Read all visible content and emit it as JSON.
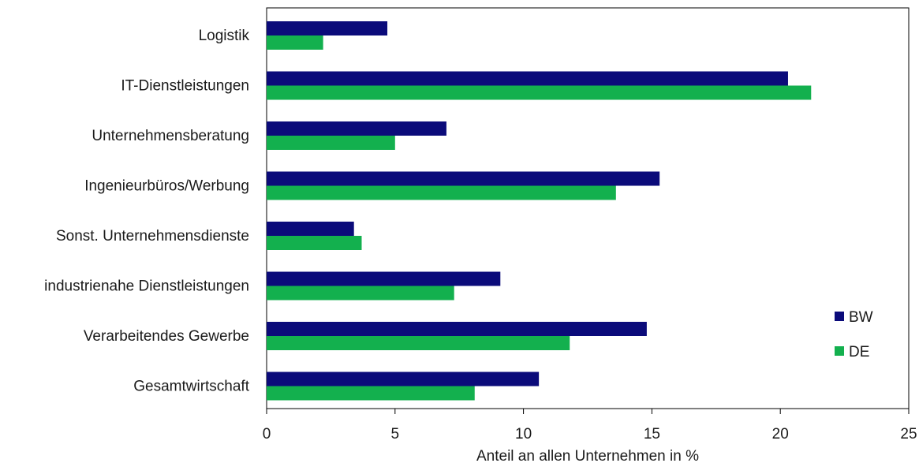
{
  "chart_data": {
    "type": "bar",
    "orientation": "horizontal",
    "categories": [
      "Logistik",
      "IT-Dienstleistungen",
      "Unternehmensberatung",
      "Ingenieurbüros/Werbung",
      "Sonst. Unternehmensdienste",
      "industrienahe Dienstleistungen",
      "Verarbeitendes Gewerbe",
      "Gesamtwirtschaft"
    ],
    "series": [
      {
        "name": "BW",
        "color": "#0b0b7a",
        "values": [
          4.7,
          20.3,
          7.0,
          15.3,
          3.4,
          9.1,
          14.8,
          10.6
        ]
      },
      {
        "name": "DE",
        "color": "#13b04e",
        "values": [
          2.2,
          21.2,
          5.0,
          13.6,
          3.7,
          7.3,
          11.8,
          8.1
        ]
      }
    ],
    "xlabel": "Anteil an allen Unternehmen in %",
    "xlim": [
      0,
      25
    ],
    "xticks": [
      "0",
      "5",
      "10",
      "15",
      "20",
      "25"
    ],
    "legend_position": "right",
    "grid": false
  }
}
